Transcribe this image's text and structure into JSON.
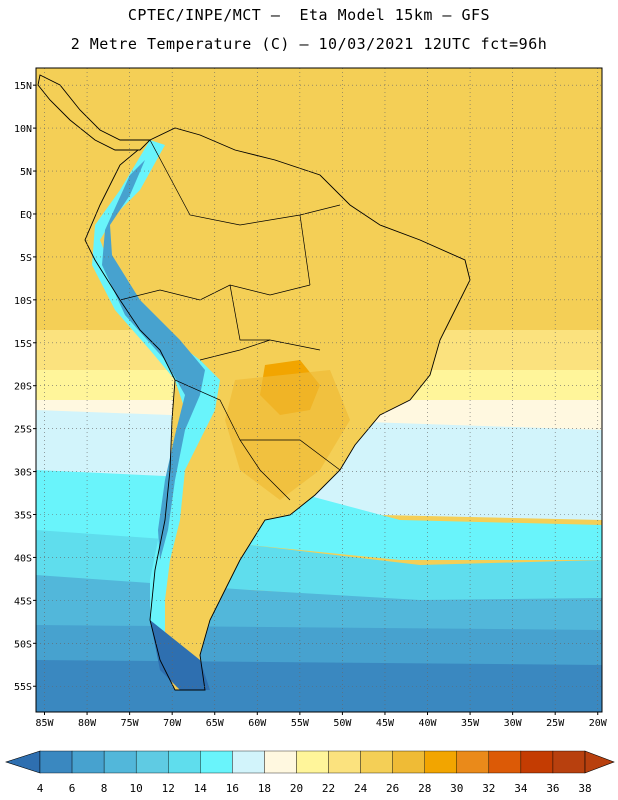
{
  "header": {
    "title_line1": "CPTEC/INPE/MCT –  Eta Model 15km – GFS",
    "title_line2": "2 Metre Temperature (C) – 10/03/2021 12UTC fct=96h"
  },
  "map": {
    "region": "South America",
    "lon_range": [
      -86,
      -19.5
    ],
    "lat_range": [
      -58,
      17
    ],
    "lat_labels": [
      "15N",
      "10N",
      "5N",
      "EQ",
      "5S",
      "10S",
      "15S",
      "20S",
      "25S",
      "30S",
      "35S",
      "40S",
      "45S",
      "50S",
      "55S"
    ],
    "lon_labels": [
      "85W",
      "80W",
      "75W",
      "70W",
      "65W",
      "60W",
      "55W",
      "50W",
      "45W",
      "40W",
      "35W",
      "30W",
      "25W",
      "20W"
    ],
    "gridlines": "dotted"
  },
  "colorbar": {
    "labels": [
      "4",
      "6",
      "8",
      "10",
      "12",
      "14",
      "16",
      "18",
      "20",
      "22",
      "24",
      "26",
      "28",
      "30",
      "32",
      "34",
      "36",
      "38"
    ],
    "colors": [
      "#2e6fb0",
      "#3a88c0",
      "#47a2cf",
      "#52b7da",
      "#5fcbe3",
      "#5fdded",
      "#69f4fb",
      "#d2f4fb",
      "#fff8e0",
      "#fff59a",
      "#fbe27e",
      "#f4cf56",
      "#efbb36",
      "#f2a500",
      "#ea8a1a",
      "#dc5a06",
      "#c43c02",
      "#b8400e"
    ],
    "low_color": "#2e6fb0",
    "high_color": "#b8400e"
  }
}
